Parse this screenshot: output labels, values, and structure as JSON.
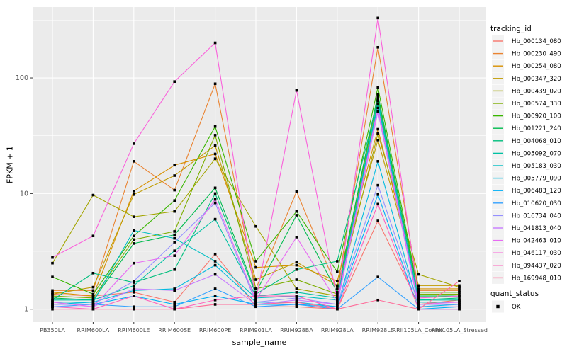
{
  "chart": {
    "y_axis": {
      "label": "FPKM + 1",
      "tick_labels": [
        "100",
        "10",
        "1"
      ]
    },
    "x_axis": {
      "label": "sample_name"
    },
    "legend": {
      "tracking_title": "tracking_id",
      "quant_title": "quant_status",
      "quant_ok_label": "OK"
    },
    "panel_bg": "#EBEBEB",
    "gridline_color": "#FFFFFF",
    "tick_text_color": "#4D4D4D",
    "point_color": "#000000"
  },
  "chart_data": {
    "type": "line",
    "title": "",
    "xlabel": "sample_name",
    "ylabel": "FPKM + 1",
    "y_scale": "log10",
    "ylim": [
      0.77,
      410
    ],
    "y_ticks": [
      1,
      10,
      100
    ],
    "grid": true,
    "legend_position": "right",
    "point_marker": {
      "shape": "square",
      "color": "#000000",
      "label": "OK"
    },
    "categories": [
      "PB350LA",
      "RRIM600LA",
      "RRIM600LE",
      "RRIM600SE",
      "RRIM600PE",
      "RRIM901LA",
      "RRIM928BA",
      "RRIM928LA",
      "RRIM928LE",
      "RRII105LA_Control",
      "RRII105LA_Stressed"
    ],
    "series": [
      {
        "name": "Hb_000134_080",
        "color": "#F8766D",
        "values": [
          1.35,
          1.3,
          1.4,
          1.15,
          3.0,
          1.05,
          1.05,
          1.0,
          5.8,
          1.1,
          1.2
        ]
      },
      {
        "name": "Hb_000230_490",
        "color": "#EA8331",
        "values": [
          1.45,
          1.45,
          19,
          10.7,
          89,
          1.5,
          10.4,
          1.5,
          184,
          1.45,
          1.45
        ]
      },
      {
        "name": "Hb_000254_080",
        "color": "#D89000",
        "values": [
          1.4,
          1.3,
          10.5,
          17.6,
          22,
          2.3,
          2.4,
          1.75,
          36,
          1.5,
          1.5
        ]
      },
      {
        "name": "Hb_000347_320",
        "color": "#C09B00",
        "values": [
          1.35,
          1.55,
          9.8,
          14.3,
          26,
          1.8,
          2.55,
          1.6,
          29,
          1.6,
          1.6
        ]
      },
      {
        "name": "Hb_000439_020",
        "color": "#A3A500",
        "values": [
          2.5,
          9.7,
          6.3,
          7.0,
          20,
          5.2,
          1.5,
          1.3,
          33,
          2.0,
          1.55
        ]
      },
      {
        "name": "Hb_000574_330",
        "color": "#7CAE00",
        "values": [
          1.3,
          1.25,
          4.0,
          4.7,
          32,
          1.5,
          1.8,
          1.35,
          68,
          1.35,
          1.35
        ]
      },
      {
        "name": "Hb_000920_100",
        "color": "#39B600",
        "values": [
          1.9,
          1.35,
          4.3,
          8.7,
          38,
          2.6,
          7.0,
          2.1,
          83,
          1.4,
          1.4
        ]
      },
      {
        "name": "Hb_001221_240",
        "color": "#00BB4E",
        "values": [
          1.25,
          1.2,
          3.7,
          4.4,
          11.2,
          1.4,
          6.5,
          1.4,
          72,
          1.3,
          1.3
        ]
      },
      {
        "name": "Hb_004068_010",
        "color": "#00BF7D",
        "values": [
          1.2,
          2.05,
          1.7,
          2.2,
          10,
          1.35,
          2.2,
          2.6,
          65,
          1.2,
          1.25
        ]
      },
      {
        "name": "Hb_005092_070",
        "color": "#00C1A3",
        "values": [
          1.2,
          1.2,
          1.6,
          3.2,
          6.0,
          1.3,
          1.4,
          1.25,
          63,
          1.2,
          1.2
        ]
      },
      {
        "name": "Hb_005183_030",
        "color": "#00BFC4",
        "values": [
          1.15,
          1.15,
          4.8,
          4.1,
          2.6,
          1.25,
          1.3,
          1.2,
          59,
          1.15,
          1.15
        ]
      },
      {
        "name": "Hb_005779_090",
        "color": "#00BAE0",
        "values": [
          1.1,
          1.15,
          1.45,
          1.5,
          2.4,
          1.15,
          1.15,
          1.05,
          19,
          1.05,
          1.1
        ]
      },
      {
        "name": "Hb_006483_120",
        "color": "#00B0F6",
        "values": [
          1.1,
          1.1,
          1.3,
          1.1,
          1.3,
          1.1,
          1.1,
          1.05,
          9.8,
          1.0,
          1.05
        ]
      },
      {
        "name": "Hb_010620_030",
        "color": "#35A2FF",
        "values": [
          1.05,
          1.1,
          1.05,
          1.05,
          1.5,
          1.05,
          1.1,
          1.0,
          1.9,
          1.0,
          1.0
        ]
      },
      {
        "name": "Hb_016734_040",
        "color": "#9590FF",
        "values": [
          1.1,
          1.1,
          1.75,
          3.8,
          8.3,
          1.15,
          1.25,
          1.1,
          11.8,
          1.1,
          1.1
        ]
      },
      {
        "name": "Hb_041813_040",
        "color": "#C77CFF",
        "values": [
          1.05,
          1.05,
          1.5,
          1.45,
          2.0,
          1.1,
          1.2,
          1.1,
          51,
          1.05,
          1.05
        ]
      },
      {
        "name": "Hb_042463_010",
        "color": "#E76BF3",
        "values": [
          1.15,
          1.05,
          2.5,
          2.9,
          8.9,
          1.2,
          4.2,
          1.15,
          55,
          1.1,
          1.15
        ]
      },
      {
        "name": "Hb_046117_030",
        "color": "#FA62DB",
        "values": [
          2.8,
          4.3,
          27,
          93,
          201,
          1.2,
          78,
          1.2,
          330,
          1.25,
          1.3
        ]
      },
      {
        "name": "Hb_094437_020",
        "color": "#FF62BC",
        "values": [
          1.05,
          1.0,
          1.3,
          1.0,
          1.2,
          1.3,
          1.3,
          1.0,
          8.1,
          1.0,
          1.0
        ]
      },
      {
        "name": "Hb_169948_010",
        "color": "#FF6A98",
        "values": [
          1.0,
          1.0,
          1.0,
          1.0,
          1.1,
          1.1,
          1.15,
          1.0,
          1.2,
          1.0,
          1.75
        ]
      }
    ]
  }
}
